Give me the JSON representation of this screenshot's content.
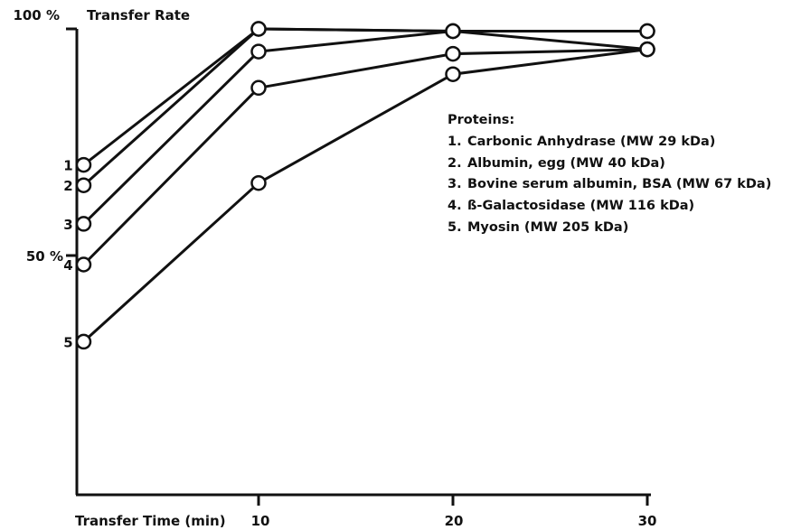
{
  "chart_data": {
    "type": "line",
    "ylabel": "Transfer Rate",
    "xlabel": "Transfer Time (min)",
    "x_ticks": [
      "10",
      "20",
      "30"
    ],
    "y_ticks": [
      "100 %",
      "50 %"
    ],
    "xlim": [
      0,
      30
    ],
    "ylim": [
      0,
      100
    ],
    "grid": false,
    "legend_title": "Proteins:",
    "legend_position": "right",
    "line_color": "#111111",
    "series": [
      {
        "label": "1",
        "name": "Carbonic Anhydrase (MW 29 kDa)",
        "x": [
          1,
          10,
          20,
          30
        ],
        "y": [
          70,
          100,
          99.5,
          99.5
        ]
      },
      {
        "label": "2",
        "name": "Albumin, egg (MW 40 kDa)",
        "x": [
          1,
          10,
          20,
          30
        ],
        "y": [
          65.5,
          100,
          99.5,
          99.5
        ]
      },
      {
        "label": "3",
        "name": "Bovine serum albumin, BSA (MW 67 kDa)",
        "x": [
          1,
          10,
          20,
          30
        ],
        "y": [
          57,
          95,
          99.5,
          95.5
        ]
      },
      {
        "label": "4",
        "name": "ß-Galactosidase (MW 116 kDa)",
        "x": [
          1,
          10,
          20,
          30
        ],
        "y": [
          48,
          87,
          94.5,
          95.5
        ]
      },
      {
        "label": "5",
        "name": "Myosin (MW 205 kDa)",
        "x": [
          1,
          10,
          20,
          30
        ],
        "y": [
          31,
          66,
          90,
          95.5
        ]
      }
    ]
  }
}
